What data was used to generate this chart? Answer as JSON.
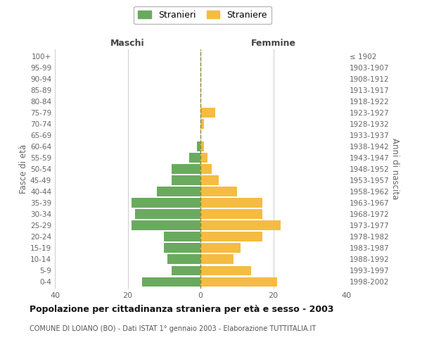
{
  "age_groups": [
    "100+",
    "95-99",
    "90-94",
    "85-89",
    "80-84",
    "75-79",
    "70-74",
    "65-69",
    "60-64",
    "55-59",
    "50-54",
    "45-49",
    "40-44",
    "35-39",
    "30-34",
    "25-29",
    "20-24",
    "15-19",
    "10-14",
    "5-9",
    "0-4"
  ],
  "birth_years": [
    "≤ 1902",
    "1903-1907",
    "1908-1912",
    "1913-1917",
    "1918-1922",
    "1923-1927",
    "1928-1932",
    "1933-1937",
    "1938-1942",
    "1943-1947",
    "1948-1952",
    "1953-1957",
    "1958-1962",
    "1963-1967",
    "1968-1972",
    "1973-1977",
    "1978-1982",
    "1983-1987",
    "1988-1992",
    "1993-1997",
    "1998-2002"
  ],
  "males": [
    0,
    0,
    0,
    0,
    0,
    0,
    0,
    0,
    1,
    3,
    8,
    8,
    12,
    19,
    18,
    19,
    10,
    10,
    9,
    8,
    16
  ],
  "females": [
    0,
    0,
    0,
    0,
    0,
    4,
    1,
    0,
    1,
    2,
    3,
    5,
    10,
    17,
    17,
    22,
    17,
    11,
    9,
    14,
    21
  ],
  "male_color": "#6aaa5f",
  "female_color": "#f5bc42",
  "dashed_line_color": "#888830",
  "grid_color": "#cccccc",
  "title": "Popolazione per cittadinanza straniera per età e sesso - 2003",
  "subtitle": "COMUNE DI LOIANO (BO) - Dati ISTAT 1° gennaio 2003 - Elaborazione TUTTITALIA.IT",
  "ylabel_left": "Fasce di età",
  "ylabel_right": "Anni di nascita",
  "xlabel_left": "Maschi",
  "xlabel_right": "Femmine",
  "legend_male": "Stranieri",
  "legend_female": "Straniere",
  "xlim": 40,
  "bar_height": 0.85,
  "background_color": "#ffffff"
}
